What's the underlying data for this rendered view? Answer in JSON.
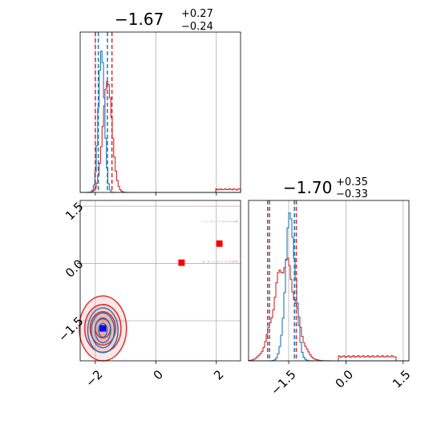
{
  "colors": {
    "blue": "#1f77b4",
    "red": "#d62728",
    "red_fill": "#e88e8e",
    "grid": "#b0b0b0",
    "point_blue": "#0000ff",
    "point_red": "#ff0000",
    "scatter_pink": "#f4b6c2"
  },
  "titles": {
    "param1": {
      "value": "−1.67",
      "plus": "+0.27",
      "minus": "−0.24"
    },
    "param2": {
      "value": "−1.70",
      "plus": "+0.35",
      "minus": "−0.33"
    }
  },
  "chart_data": {
    "type": "corner",
    "parameters": [
      {
        "median": -1.67,
        "err_plus": 0.27,
        "err_minus": 0.24
      },
      {
        "median": -1.7,
        "err_plus": 0.35,
        "err_minus": 0.33
      }
    ],
    "param1_axis": {
      "range": [
        -2.5,
        2.8
      ],
      "ticks": [
        -2,
        0,
        2
      ],
      "tick_labels": [
        "−2",
        "0",
        "2"
      ]
    },
    "param2_axis": {
      "range": [
        -2.55,
        1.65
      ],
      "ticks": [
        -1.5,
        0.0,
        1.5
      ],
      "tick_labels_y": [
        "−1.5",
        "0.0",
        "1.5"
      ],
      "tick_labels_x": [
        "−1.5",
        "0.0",
        "1.5"
      ]
    },
    "marginal_param1": {
      "blue_peak": -1.8,
      "red_peak": -1.6,
      "blue_dashed": [
        -1.9,
        -1.6
      ],
      "red_dashed": [
        -2.0,
        -1.45
      ],
      "red_secondary_bump": [
        2.0,
        2.8
      ]
    },
    "marginal_param2": {
      "blue_peak": -1.45,
      "red_peak": -1.6,
      "blue_dashed": [
        -2.0,
        -1.35
      ],
      "red_dashed": [
        -2.05,
        -1.3
      ],
      "red_secondary_range": [
        -0.2,
        1.3
      ]
    },
    "joint": {
      "blue_center": [
        -1.75,
        -1.75
      ],
      "red_center": [
        -1.75,
        -1.7
      ],
      "red_points": [
        [
          0.85,
          0.02
        ],
        [
          2.1,
          0.52
        ]
      ],
      "blue_point": [
        -1.75,
        -1.7
      ]
    },
    "grid": true
  }
}
